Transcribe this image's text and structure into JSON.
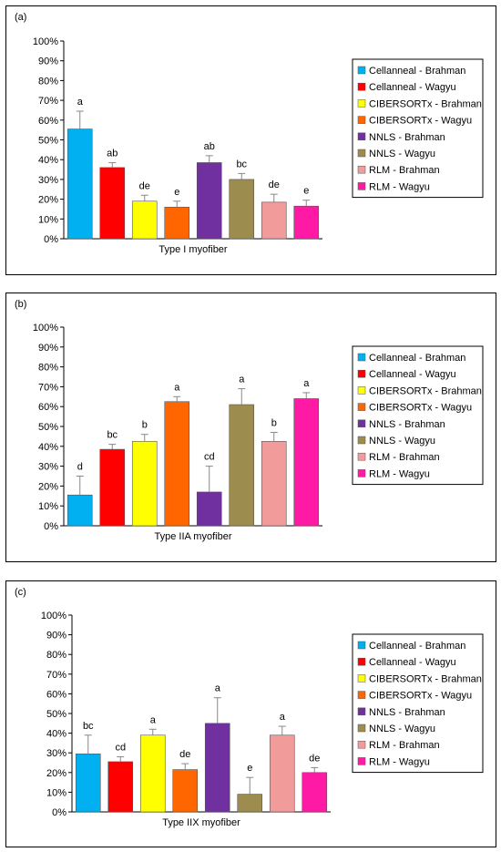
{
  "colors": {
    "Cellanneal - Brahman": "#00b0f0",
    "Cellanneal - Wagyu": "#ff0000",
    "CIBERSORTx - Brahman": "#ffff00",
    "CIBERSORTx - Wagyu": "#ff6600",
    "NNLS - Brahman": "#7030a0",
    "NNLS - Wagyu": "#9c8c4e",
    "RLM - Brahman": "#f29b9b",
    "RLM - Wagyu": "#ff1aa6"
  },
  "chart_data": [
    {
      "type": "bar",
      "panel_label": "(a)",
      "xlabel": "Type I myofiber",
      "ylim": [
        0,
        100
      ],
      "y_unit": "%",
      "yticks": [
        "0%",
        "10%",
        "20%",
        "30%",
        "40%",
        "50%",
        "60%",
        "70%",
        "80%",
        "90%",
        "100%"
      ],
      "legend_position": "right",
      "categories": [
        "Cellanneal - Brahman",
        "Cellanneal - Wagyu",
        "CIBERSORTx - Brahman",
        "CIBERSORTx - Wagyu",
        "NNLS - Brahman",
        "NNLS - Wagyu",
        "RLM - Brahman",
        "RLM - Wagyu"
      ],
      "values": [
        55.5,
        36,
        19,
        16,
        38.5,
        30,
        18.5,
        16.5
      ],
      "errors": [
        9,
        2.5,
        3,
        3,
        3.5,
        3,
        4,
        3
      ],
      "annotations": [
        "a",
        "ab",
        "de",
        "e",
        "ab",
        "bc",
        "de",
        "e"
      ]
    },
    {
      "type": "bar",
      "panel_label": "(b)",
      "xlabel": "Type IIA myofiber",
      "ylim": [
        0,
        100
      ],
      "y_unit": "%",
      "yticks": [
        "0%",
        "10%",
        "20%",
        "30%",
        "40%",
        "50%",
        "60%",
        "70%",
        "80%",
        "90%",
        "100%"
      ],
      "legend_position": "right",
      "categories": [
        "Cellanneal - Brahman",
        "Cellanneal - Wagyu",
        "CIBERSORTx - Brahman",
        "CIBERSORTx - Wagyu",
        "NNLS - Brahman",
        "NNLS - Wagyu",
        "RLM - Brahman",
        "RLM - Wagyu"
      ],
      "values": [
        15.5,
        38.5,
        42.5,
        62.5,
        17,
        61,
        42.5,
        64
      ],
      "errors": [
        9.5,
        2.5,
        3.5,
        2.5,
        13,
        8,
        4.5,
        3
      ],
      "annotations": [
        "d",
        "bc",
        "b",
        "a",
        "cd",
        "a",
        "b",
        "a"
      ]
    },
    {
      "type": "bar",
      "panel_label": "(c)",
      "xlabel": "Type IIX myofiber",
      "ylim": [
        0,
        100
      ],
      "y_unit": "%",
      "yticks": [
        "0%",
        "10%",
        "20%",
        "30%",
        "40%",
        "50%",
        "60%",
        "70%",
        "80%",
        "90%",
        "100%"
      ],
      "legend_position": "right",
      "categories": [
        "Cellanneal - Brahman",
        "Cellanneal - Wagyu",
        "CIBERSORTx - Brahman",
        "CIBERSORTx - Wagyu",
        "NNLS - Brahman",
        "NNLS - Wagyu",
        "RLM - Brahman",
        "RLM - Wagyu"
      ],
      "values": [
        29.5,
        25.5,
        39,
        21.5,
        45,
        9,
        39,
        20
      ],
      "errors": [
        9.5,
        2.5,
        3,
        3,
        13,
        8.5,
        4.5,
        2.5
      ],
      "annotations": [
        "bc",
        "cd",
        "a",
        "de",
        "a",
        "e",
        "a",
        "de"
      ]
    }
  ]
}
